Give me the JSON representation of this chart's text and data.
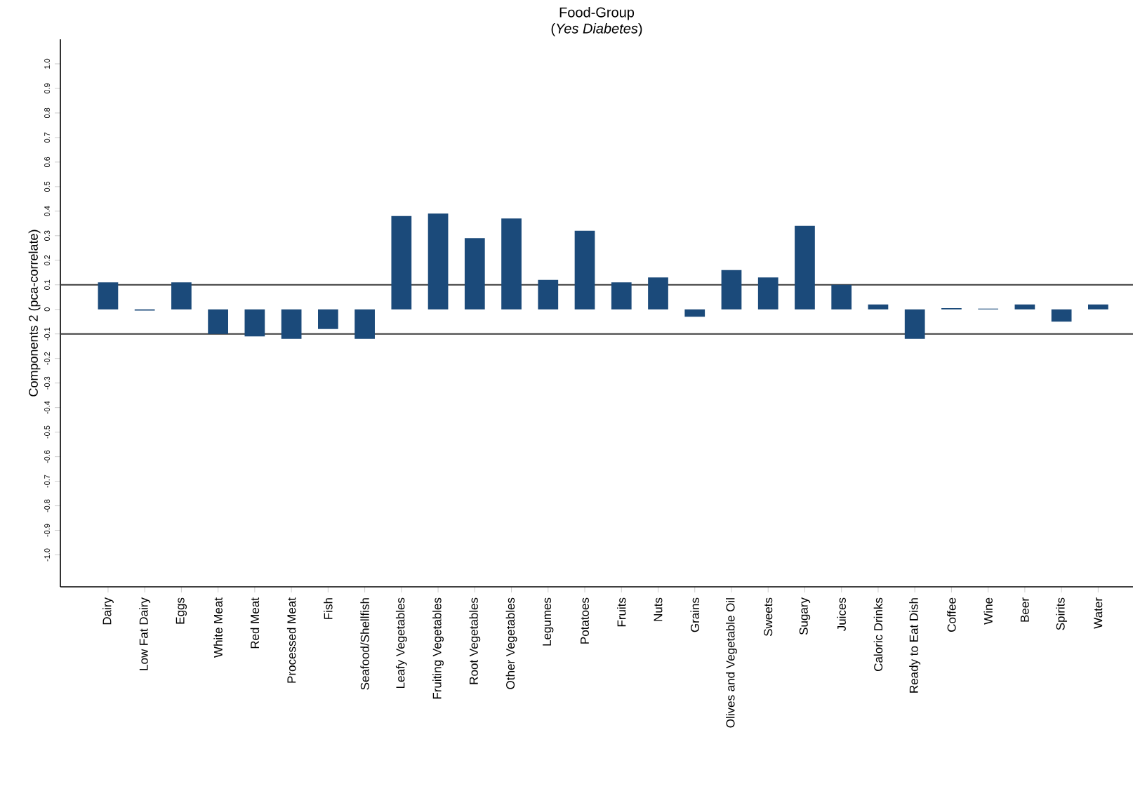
{
  "chart_data": {
    "type": "bar",
    "title": "Food-Group",
    "subtitle": "(*Yes Diabetes*)",
    "ylabel": "Components 2 (pca-correlate)",
    "categories": [
      "Dairy",
      "Low Fat Dairy",
      "Eggs",
      "White Meat",
      "Red Meat",
      "Processed Meat",
      "Fish",
      "Seafood/Shellfish",
      "Leafy Vegetables",
      "Fruiting Vegetables",
      "Root Vegetables",
      "Other Vegetables",
      "Legumes",
      "Potatoes",
      "Fruits",
      "Nuts",
      "Grains",
      "Olives and Vegetable Oil",
      "Sweets",
      "Sugary",
      "Juices",
      "Caloric Drinks",
      "Ready to Eat Dish",
      "Coffee",
      "Wine",
      "Beer",
      "Spirits",
      "Water"
    ],
    "values": [
      0.11,
      -0.005,
      0.11,
      -0.1,
      -0.11,
      -0.12,
      -0.08,
      -0.12,
      0.38,
      0.39,
      0.29,
      0.37,
      0.12,
      0.32,
      0.11,
      0.13,
      -0.03,
      0.16,
      0.13,
      0.34,
      0.1,
      0.02,
      -0.12,
      0.005,
      0.003,
      0.02,
      -0.05,
      0.02
    ],
    "color": "#1b4a7a",
    "ylim": [
      -1.13,
      1.1
    ],
    "yticks": [
      {
        "value": -1.0,
        "label": "-1.0"
      },
      -0.9,
      -0.8,
      -0.7,
      -0.6,
      -0.5,
      -0.4,
      -0.3,
      -0.2,
      -0.1,
      0,
      0.1,
      0.2,
      0.3,
      0.4,
      0.5,
      0.6,
      0.7,
      0.8,
      0.9,
      {
        "value": 1.0,
        "label": "1.0"
      }
    ],
    "ref_lines": [
      {
        "axis": "y",
        "value": 0.1,
        "color": "#3a3a3a"
      },
      {
        "axis": "y",
        "value": -0.1,
        "color": "#3a3a3a"
      }
    ]
  }
}
